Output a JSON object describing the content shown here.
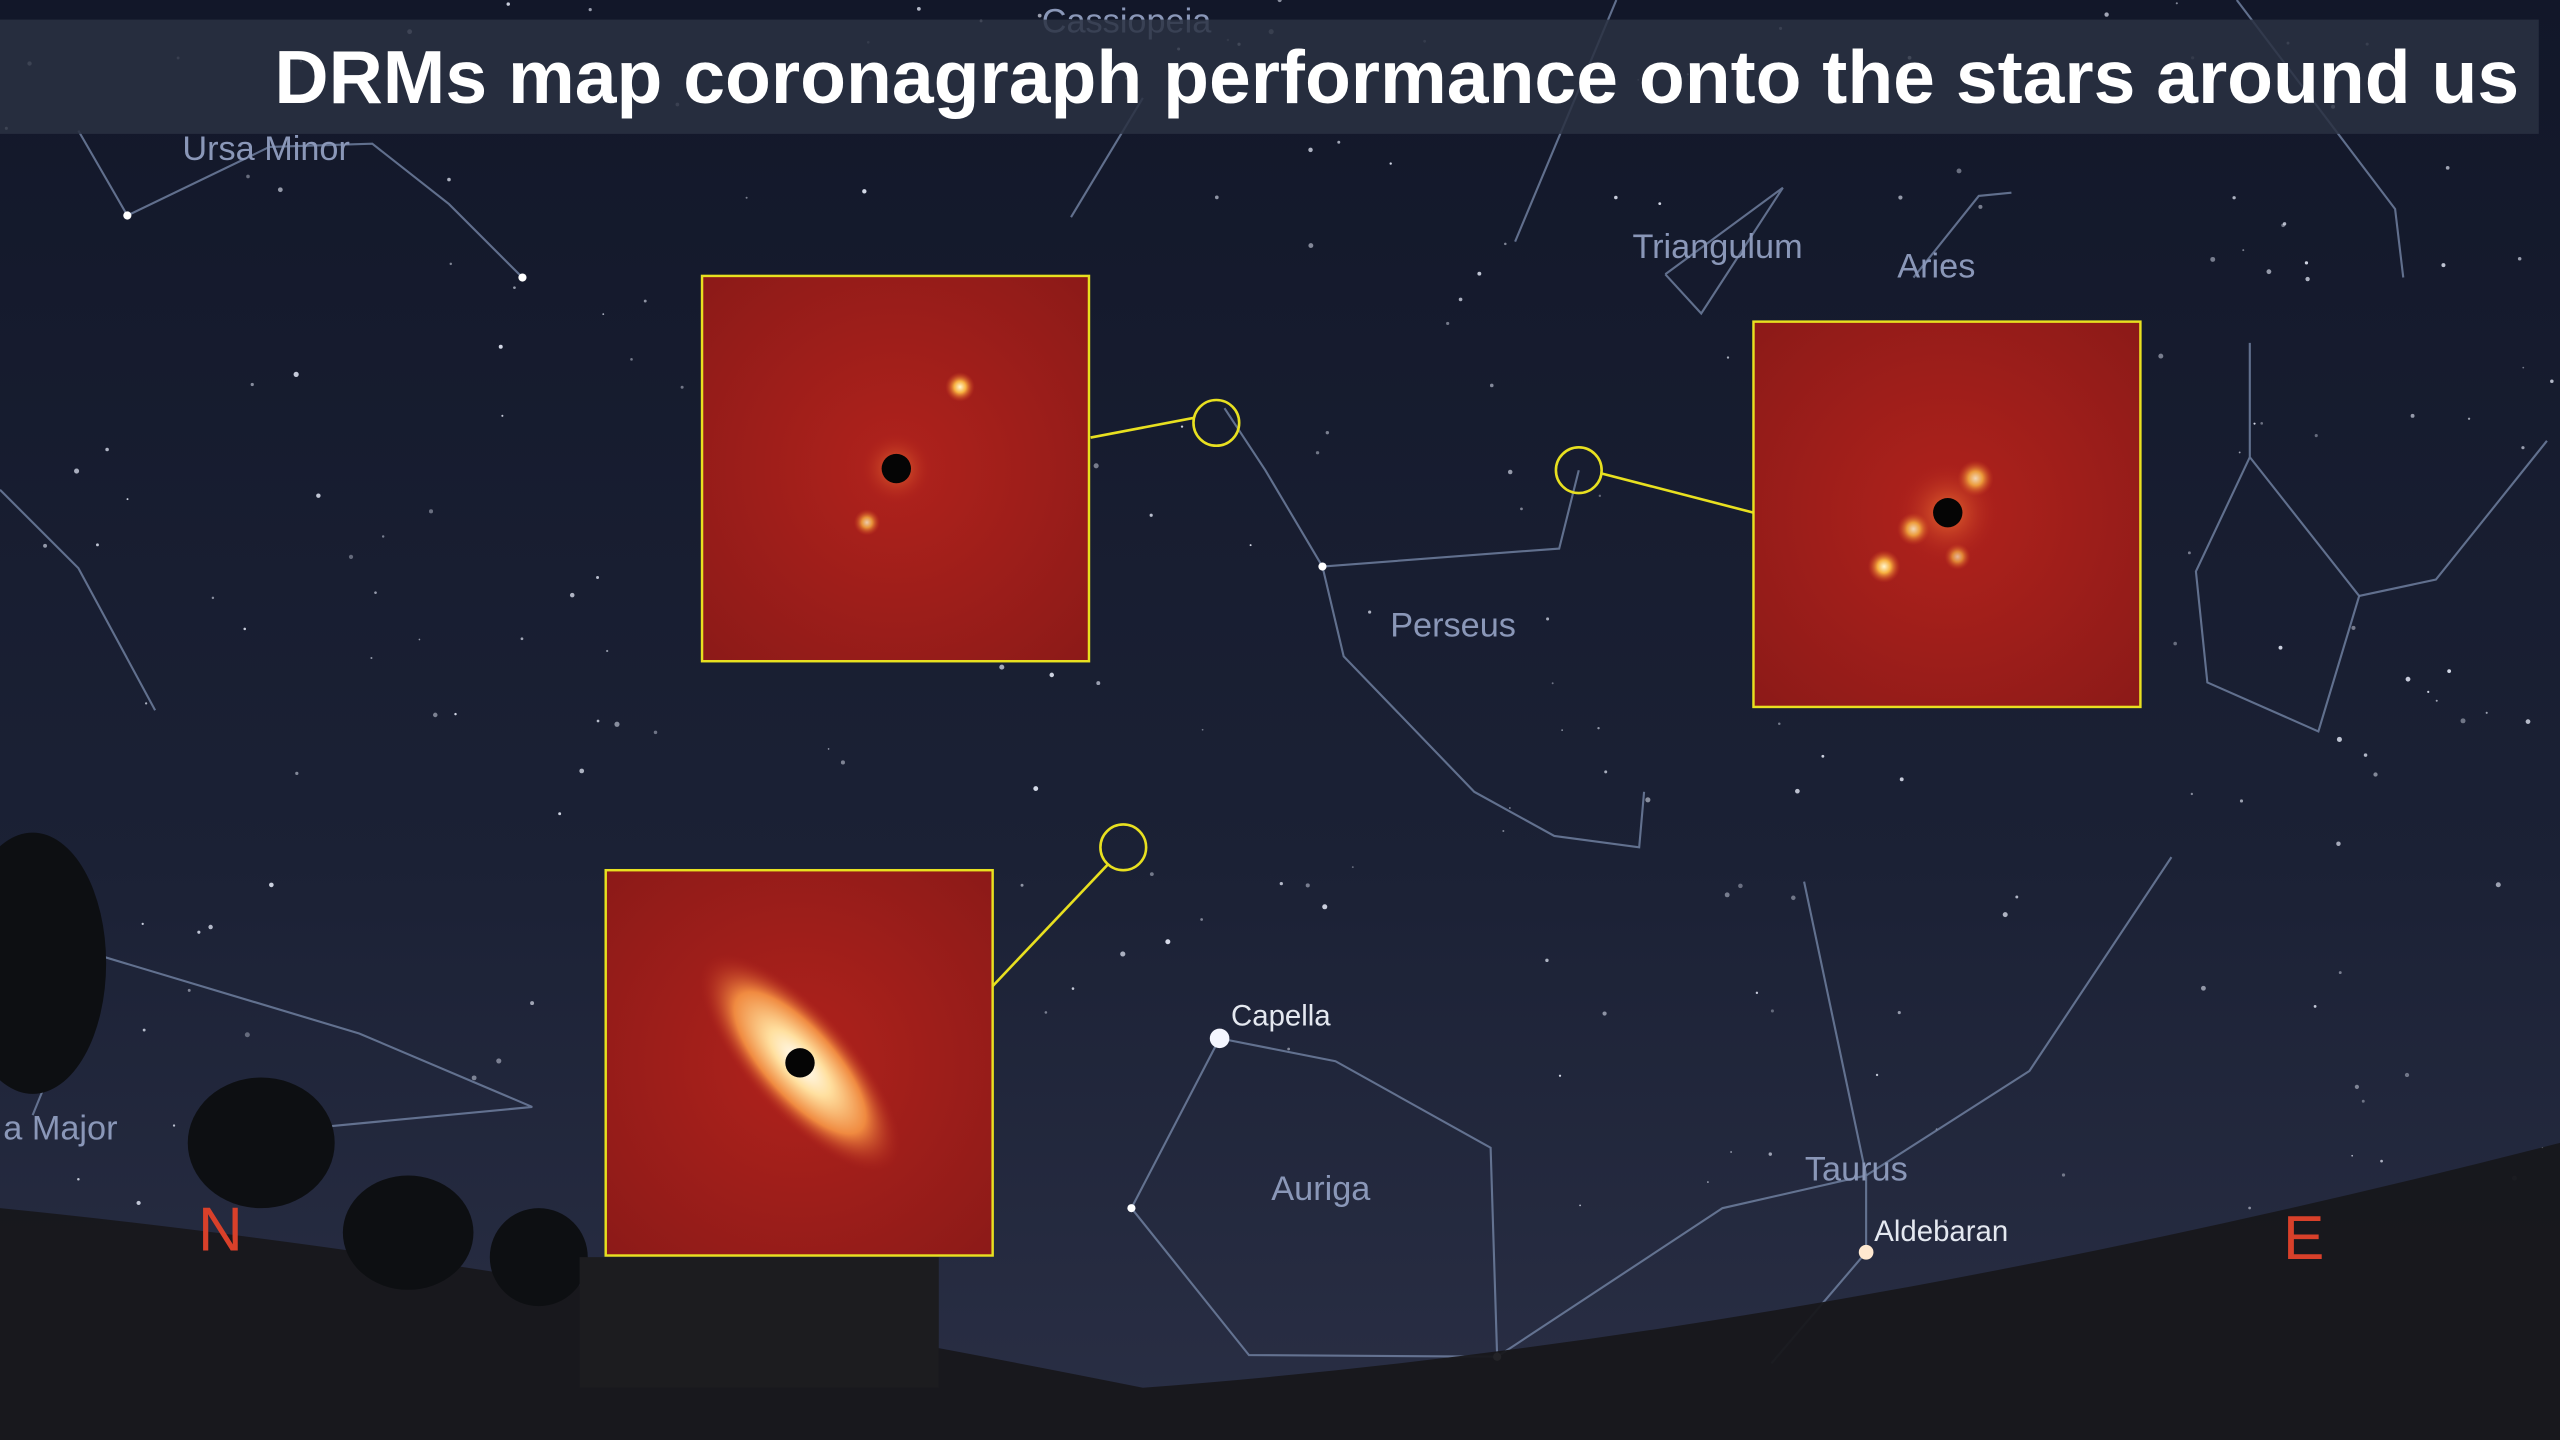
{
  "title": "DRMs map coronagraph performance onto the stars around us",
  "constellations": [
    "Cassiopeia",
    "Ursa Minor",
    "Triangulum",
    "Aries",
    "Perseus",
    "Auriga",
    "Taurus",
    "a Major"
  ],
  "stars": [
    "Capella",
    "Aldebaran"
  ],
  "compass": [
    "N",
    "E"
  ]
}
